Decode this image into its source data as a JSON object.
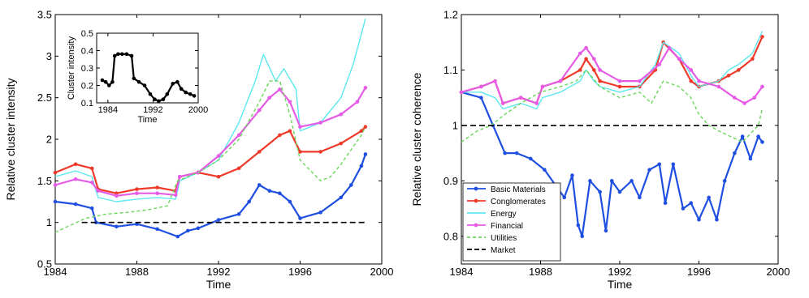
{
  "chart_data": [
    {
      "type": "line",
      "xlabel": "Time",
      "ylabel": "Relative cluster intensity",
      "xlim": [
        1984,
        2000
      ],
      "ylim": [
        0.5,
        3.5
      ],
      "xticks": [
        "1984",
        "1988",
        "1992",
        "1996",
        "2000"
      ],
      "yticks": [
        "0.5",
        "1",
        "1.5",
        "2",
        "2.5",
        "3",
        "3.5"
      ],
      "series": [
        {
          "name": "Basic Materials",
          "color": "#1f4fe0",
          "marker": "dot",
          "x": [
            1984,
            1985,
            1985.8,
            1986,
            1987,
            1988,
            1989,
            1990,
            1990.5,
            1991,
            1992,
            1993,
            1993.5,
            1994,
            1994.5,
            1995,
            1995.5,
            1996,
            1997,
            1998,
            1998.5,
            1999,
            1999.2
          ],
          "y": [
            1.25,
            1.22,
            1.17,
            1.0,
            0.95,
            0.98,
            0.92,
            0.83,
            0.9,
            0.93,
            1.03,
            1.1,
            1.25,
            1.45,
            1.38,
            1.35,
            1.25,
            1.05,
            1.12,
            1.3,
            1.45,
            1.68,
            1.82
          ]
        },
        {
          "name": "Conglomerates",
          "color": "#ee3a2a",
          "marker": "dot",
          "x": [
            1984,
            1985,
            1985.8,
            1986.1,
            1987,
            1988,
            1989,
            1989.9,
            1990.1,
            1991,
            1992,
            1993,
            1994,
            1995,
            1995.5,
            1996,
            1997,
            1998,
            1999,
            1999.2
          ],
          "y": [
            1.6,
            1.7,
            1.65,
            1.4,
            1.35,
            1.4,
            1.42,
            1.38,
            1.55,
            1.6,
            1.55,
            1.65,
            1.85,
            2.05,
            2.1,
            1.85,
            1.85,
            1.95,
            2.1,
            2.15
          ]
        },
        {
          "name": "Energy",
          "color": "#5ce8ef",
          "marker": "none",
          "x": [
            1984,
            1985,
            1985.8,
            1986.1,
            1987,
            1988,
            1989,
            1989.9,
            1990.1,
            1991,
            1992,
            1993,
            1993.8,
            1994.2,
            1994.8,
            1995.2,
            1995.8,
            1996,
            1997,
            1998,
            1998.6,
            1999.2
          ],
          "y": [
            1.55,
            1.62,
            1.55,
            1.3,
            1.25,
            1.28,
            1.3,
            1.28,
            1.5,
            1.6,
            1.75,
            2.2,
            2.7,
            3.02,
            2.7,
            2.85,
            2.6,
            2.1,
            2.2,
            2.5,
            2.9,
            3.45
          ]
        },
        {
          "name": "Financial",
          "color": "#e65be6",
          "marker": "dot",
          "x": [
            1984,
            1985,
            1985.8,
            1986.1,
            1987,
            1988,
            1989,
            1989.9,
            1990.1,
            1991,
            1992,
            1993,
            1994,
            1994.5,
            1995,
            1995.5,
            1996,
            1997,
            1998,
            1998.8,
            1999.2
          ],
          "y": [
            1.45,
            1.52,
            1.48,
            1.38,
            1.32,
            1.35,
            1.35,
            1.33,
            1.55,
            1.6,
            1.8,
            2.05,
            2.35,
            2.5,
            2.6,
            2.45,
            2.15,
            2.2,
            2.3,
            2.45,
            2.62
          ]
        },
        {
          "name": "Utilities",
          "color": "#6ad65a",
          "marker": "dashed",
          "x": [
            1984,
            1984.6,
            1985.5,
            1986.5,
            1987.5,
            1988.5,
            1989.5,
            1990,
            1991,
            1992,
            1993,
            1994,
            1994.5,
            1995,
            1995.5,
            1996,
            1997,
            1997.5,
            1998,
            1999,
            1999.2
          ],
          "y": [
            0.88,
            0.95,
            1.05,
            1.1,
            1.12,
            1.15,
            1.2,
            1.5,
            1.6,
            1.75,
            2.0,
            2.45,
            2.7,
            2.7,
            2.3,
            1.75,
            1.5,
            1.55,
            1.7,
            2.05,
            2.15
          ]
        },
        {
          "name": "Market",
          "color": "#000000",
          "marker": "dash",
          "x": [
            1985.3,
            1999.2
          ],
          "y": [
            1.0,
            1.0
          ]
        }
      ]
    },
    {
      "type": "line",
      "xlabel": "Time",
      "ylabel": "Cluster intensity",
      "xlim": [
        1982,
        2000
      ],
      "ylim": [
        0.1,
        0.5
      ],
      "xticks": [
        "1984",
        "1992",
        "2000"
      ],
      "yticks": [
        "0.1",
        "0.2",
        "0.3",
        "0.4",
        "0.5"
      ],
      "series": [
        {
          "color": "#000000",
          "marker": "dot",
          "x": [
            1983,
            1983.6,
            1984.2,
            1984.8,
            1985.2,
            1985.8,
            1986.5,
            1987.3,
            1988.2,
            1988.6,
            1989.5,
            1990.5,
            1991.5,
            1992.3,
            1993,
            1993.8,
            1994.5,
            1995.5,
            1996.3,
            1997,
            1997.8,
            1998.6,
            1999.3
          ],
          "y": [
            0.23,
            0.22,
            0.2,
            0.22,
            0.37,
            0.38,
            0.38,
            0.38,
            0.37,
            0.24,
            0.22,
            0.2,
            0.15,
            0.12,
            0.11,
            0.12,
            0.15,
            0.21,
            0.22,
            0.18,
            0.16,
            0.15,
            0.14
          ]
        }
      ]
    },
    {
      "type": "line",
      "xlabel": "Time",
      "ylabel": "Relative cluster coherence",
      "xlim": [
        1984,
        2000
      ],
      "ylim": [
        0.75,
        1.2
      ],
      "xticks": [
        "1984",
        "1988",
        "1992",
        "1996",
        "2000"
      ],
      "yticks": [
        "0.8",
        "0.9",
        "1",
        "1.1",
        "1.2"
      ],
      "legend": [
        "Basic Materials",
        "Conglomerates",
        "Energy",
        "Financial",
        "Utilities",
        "Market"
      ],
      "legend_position": "bottom-left",
      "series": [
        {
          "name": "Basic Materials",
          "color": "#1f4fe0",
          "marker": "dot",
          "x": [
            1984,
            1985,
            1985.6,
            1986.2,
            1986.8,
            1987.5,
            1988.2,
            1988.8,
            1989.2,
            1989.6,
            1989.9,
            1990.1,
            1990.5,
            1991,
            1991.3,
            1991.6,
            1992,
            1992.6,
            1993,
            1993.5,
            1994,
            1994.3,
            1994.7,
            1995.2,
            1995.6,
            1996,
            1996.5,
            1996.9,
            1997.3,
            1997.8,
            1998.2,
            1998.6,
            1999,
            1999.2
          ],
          "y": [
            1.06,
            1.05,
            1.0,
            0.95,
            0.95,
            0.94,
            0.92,
            0.89,
            0.87,
            0.91,
            0.82,
            0.8,
            0.9,
            0.88,
            0.81,
            0.9,
            0.88,
            0.9,
            0.87,
            0.92,
            0.93,
            0.86,
            0.93,
            0.85,
            0.86,
            0.83,
            0.87,
            0.83,
            0.9,
            0.95,
            0.98,
            0.94,
            0.98,
            0.97
          ]
        },
        {
          "name": "Conglomerates",
          "color": "#ee3a2a",
          "marker": "dot",
          "x": [
            1984,
            1985,
            1985.7,
            1986.1,
            1987,
            1987.8,
            1988.1,
            1989,
            1990,
            1990.3,
            1990.7,
            1991,
            1992,
            1993,
            1993.8,
            1994.2,
            1995,
            1995.6,
            1996,
            1997,
            1997.5,
            1998,
            1998.7,
            1999.2
          ],
          "y": [
            1.06,
            1.07,
            1.08,
            1.04,
            1.05,
            1.04,
            1.07,
            1.08,
            1.1,
            1.12,
            1.1,
            1.08,
            1.07,
            1.07,
            1.1,
            1.15,
            1.12,
            1.08,
            1.07,
            1.08,
            1.09,
            1.1,
            1.12,
            1.16
          ]
        },
        {
          "name": "Energy",
          "color": "#5ce8ef",
          "marker": "none",
          "x": [
            1984,
            1985,
            1985.7,
            1986.1,
            1987,
            1987.8,
            1988.1,
            1989,
            1990,
            1990.3,
            1990.7,
            1991,
            1992,
            1993,
            1993.8,
            1994.2,
            1995,
            1995.6,
            1996,
            1997,
            1997.5,
            1998,
            1998.7,
            1999.2
          ],
          "y": [
            1.06,
            1.06,
            1.05,
            1.03,
            1.04,
            1.03,
            1.05,
            1.06,
            1.08,
            1.1,
            1.08,
            1.07,
            1.06,
            1.07,
            1.11,
            1.15,
            1.13,
            1.09,
            1.07,
            1.08,
            1.1,
            1.11,
            1.13,
            1.17
          ]
        },
        {
          "name": "Financial",
          "color": "#e65be6",
          "marker": "dot",
          "x": [
            1984,
            1985,
            1985.7,
            1986.1,
            1987,
            1987.8,
            1988.1,
            1989,
            1990,
            1990.3,
            1990.7,
            1991,
            1992,
            1993,
            1994,
            1994.5,
            1995,
            1995.6,
            1996,
            1997,
            1997.8,
            1998.3,
            1998.8,
            1999.2
          ],
          "y": [
            1.06,
            1.07,
            1.08,
            1.04,
            1.05,
            1.04,
            1.07,
            1.08,
            1.13,
            1.14,
            1.12,
            1.1,
            1.08,
            1.08,
            1.11,
            1.14,
            1.12,
            1.1,
            1.08,
            1.07,
            1.05,
            1.04,
            1.05,
            1.07
          ]
        },
        {
          "name": "Utilities",
          "color": "#6ad65a",
          "marker": "dashed",
          "x": [
            1984,
            1984.8,
            1985.5,
            1986.2,
            1987,
            1988,
            1989,
            1989.8,
            1990.3,
            1991,
            1992,
            1993,
            1993.6,
            1994.2,
            1995,
            1995.6,
            1996,
            1996.5,
            1997,
            1997.6,
            1998.2,
            1999,
            1999.2
          ],
          "y": [
            0.97,
            0.99,
            1.0,
            1.02,
            1.04,
            1.06,
            1.07,
            1.08,
            1.1,
            1.07,
            1.05,
            1.06,
            1.04,
            1.08,
            1.07,
            1.05,
            1.02,
            1.0,
            0.99,
            0.98,
            0.97,
            1.0,
            1.03
          ]
        },
        {
          "name": "Market",
          "color": "#000000",
          "marker": "dash",
          "x": [
            1984,
            1999.2
          ],
          "y": [
            1.0,
            1.0
          ]
        }
      ]
    }
  ]
}
